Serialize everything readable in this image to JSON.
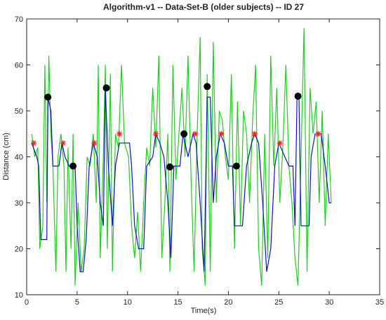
{
  "chart_data": {
    "type": "line",
    "title": "Algorithm-v1 -- Data-Set-B (older subjects) -- ID 27",
    "xlabel": "Time(s)",
    "ylabel": "Distance (cm)",
    "xlim": [
      0,
      35
    ],
    "xticks": [
      0,
      5,
      10,
      15,
      20,
      25,
      30,
      35
    ],
    "ylim": [
      10,
      70
    ],
    "yticks": [
      10,
      20,
      30,
      40,
      50,
      60,
      70
    ],
    "grid": false,
    "series": [
      {
        "color": "#22cc22",
        "style": "line",
        "x": [
          0.5,
          0.8,
          1.1,
          1.3,
          1.6,
          1.8,
          2.0,
          2.2,
          2.4,
          2.6,
          2.9,
          3.1,
          3.4,
          3.7,
          3.9,
          4.1,
          4.4,
          4.6,
          4.8,
          5.1,
          5.4,
          5.7,
          6.0,
          6.3,
          6.6,
          6.9,
          7.1,
          7.3,
          7.6,
          7.8,
          8.0,
          8.3,
          8.5,
          8.8,
          9.1,
          9.4,
          9.7,
          10.1,
          10.4,
          10.7,
          11.0,
          11.3,
          11.6,
          11.9,
          12.2,
          12.5,
          12.8,
          13.1,
          13.4,
          13.7,
          14.0,
          14.2,
          14.5,
          14.8,
          15.1,
          15.4,
          15.7,
          16.0,
          16.3,
          16.6,
          16.9,
          17.2,
          17.4,
          17.7,
          17.9,
          18.2,
          18.5,
          18.8,
          19.1,
          19.4,
          19.7,
          20.0,
          20.3,
          20.6,
          20.9,
          21.2,
          21.5,
          21.8,
          22.1,
          22.4,
          22.7,
          23.0,
          23.3,
          23.6,
          23.9,
          24.2,
          24.5,
          24.8,
          25.1,
          25.4,
          25.7,
          26.0,
          26.3,
          26.6,
          26.9,
          27.2,
          27.5,
          27.8,
          28.1,
          28.4,
          28.7,
          29.0,
          29.3,
          29.6,
          29.9,
          30.2
        ],
        "values": [
          45,
          40,
          42,
          20,
          25,
          60,
          30,
          62,
          45,
          38,
          15,
          40,
          45,
          38,
          15,
          42,
          20,
          45,
          12,
          30,
          15,
          20,
          40,
          38,
          45,
          30,
          60,
          18,
          40,
          60,
          20,
          58,
          15,
          45,
          42,
          60,
          43,
          40,
          25,
          18,
          28,
          15,
          30,
          42,
          38,
          55,
          42,
          62,
          18,
          30,
          45,
          15,
          60,
          35,
          45,
          55,
          40,
          62,
          35,
          15,
          45,
          66,
          20,
          12,
          58,
          15,
          65,
          30,
          50,
          48,
          40,
          35,
          58,
          20,
          52,
          25,
          50,
          45,
          30,
          48,
          60,
          20,
          12,
          45,
          18,
          62,
          38,
          55,
          30,
          42,
          60,
          38,
          30,
          18,
          12,
          40,
          68,
          15,
          55,
          45,
          52,
          30,
          50,
          25,
          45,
          30
        ]
      },
      {
        "color": "#1010cc",
        "style": "line",
        "x": [
          0.5,
          1.0,
          1.2,
          1.4,
          2.0,
          2.1,
          2.4,
          2.6,
          3.2,
          3.5,
          3.8,
          4.2,
          4.8,
          5.0,
          5.3,
          5.6,
          5.9,
          6.2,
          6.6,
          7.0,
          7.3,
          7.6,
          7.8,
          8.1,
          8.5,
          8.8,
          9.2,
          10.2,
          10.4,
          10.7,
          11.1,
          11.6,
          11.9,
          12.5,
          12.8,
          13.2,
          13.6,
          14.0,
          14.3,
          14.6,
          15.2,
          15.5,
          16.0,
          16.5,
          16.8,
          17.2,
          17.6,
          17.9,
          18.2,
          18.5,
          18.8,
          19.2,
          19.6,
          20.0,
          20.4,
          20.6,
          21.4,
          21.8,
          22.3,
          22.6,
          23.0,
          23.4,
          23.8,
          24.2,
          24.6,
          25.0,
          25.6,
          26.0,
          26.4,
          26.6,
          26.8,
          27.0,
          27.2,
          28.0,
          28.2,
          28.6,
          29.2,
          29.6,
          30.0,
          30.2
        ],
        "values": [
          43,
          40,
          38,
          22,
          22,
          53,
          50,
          38,
          38,
          43,
          40,
          38,
          38,
          25,
          15,
          15,
          22,
          38,
          43,
          40,
          30,
          25,
          55,
          38,
          25,
          38,
          43,
          43,
          38,
          25,
          20,
          20,
          38,
          40,
          45,
          43,
          40,
          30,
          18,
          38,
          38,
          45,
          40,
          45,
          43,
          30,
          15,
          53,
          53,
          30,
          40,
          45,
          43,
          38,
          38,
          25,
          25,
          38,
          43,
          45,
          43,
          30,
          15,
          20,
          38,
          43,
          40,
          38,
          38,
          25,
          53,
          53,
          25,
          25,
          40,
          45,
          45,
          38,
          30,
          30
        ]
      },
      {
        "color": "#000000",
        "style": "dots",
        "x": [
          2.1,
          4.6,
          7.9,
          14.2,
          15.6,
          17.9,
          20.8,
          26.9
        ],
        "values": [
          53,
          38,
          55,
          37.8,
          45,
          55.3,
          38,
          53.2
        ]
      },
      {
        "color": "#ff2020",
        "style": "stars",
        "x": [
          0.7,
          3.6,
          6.7,
          9.2,
          12.8,
          16.7,
          19.3,
          22.6,
          25.1,
          28.9
        ],
        "values": [
          43,
          43,
          43,
          45,
          45,
          45,
          45,
          45,
          43,
          45
        ]
      }
    ]
  }
}
